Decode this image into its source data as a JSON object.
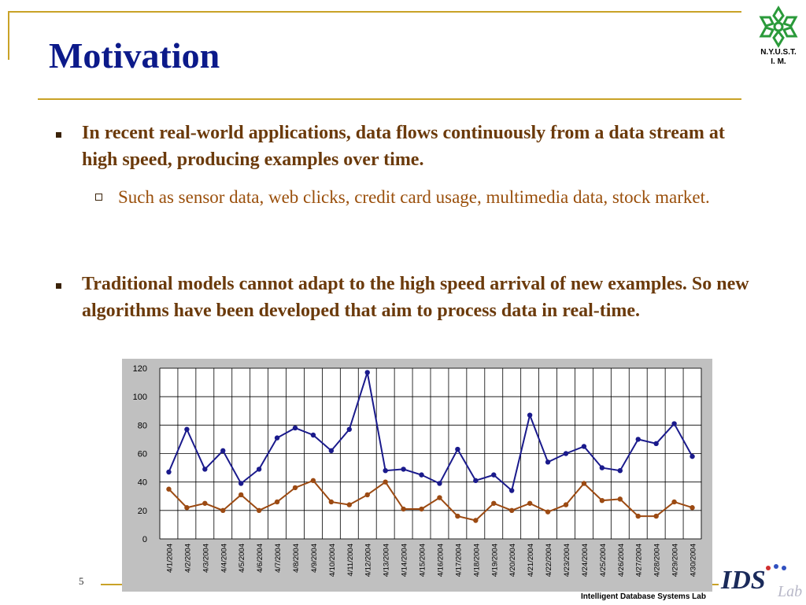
{
  "slide": {
    "title": "Motivation",
    "logo_text_line1": "N.Y.U.S.T.",
    "logo_text_line2": "I. M.",
    "bullet1": "In recent real-world applications, data flows continuously from a data stream at high speed, producing examples over time.",
    "sub_bullet1": "Such as sensor data, web clicks, credit card usage, multimedia data, stock market.",
    "bullet2": "Traditional models cannot adapt to the high speed arrival of new examples. So new algorithms have been developed that aim to process data in real-time.",
    "page_number": "5",
    "footer": "Intelligent Database Systems Lab",
    "ids_logo_text": "IDS",
    "ids_logo_script": "Lab"
  },
  "colors": {
    "title": "#0c1a8a",
    "bullet": "#6b3a0b",
    "sub_bullet": "#9a4f0b",
    "accent_rule": "#c9a227",
    "series_1": "#1a1a8c",
    "series_2": "#9c4a12",
    "logo_green": "#2a9a3a"
  },
  "chart_data": {
    "type": "line",
    "categories": [
      "4/1/2004",
      "4/2/2004",
      "4/3/2004",
      "4/4/2004",
      "4/5/2004",
      "4/6/2004",
      "4/7/2004",
      "4/8/2004",
      "4/9/2004",
      "4/10/2004",
      "4/11/2004",
      "4/12/2004",
      "4/13/2004",
      "4/14/2004",
      "4/15/2004",
      "4/16/2004",
      "4/17/2004",
      "4/18/2004",
      "4/19/2004",
      "4/20/2004",
      "4/21/2004",
      "4/22/2004",
      "4/23/2004",
      "4/24/2004",
      "4/25/2004",
      "4/26/2004",
      "4/27/2004",
      "4/28/2004",
      "4/29/2004",
      "4/30/2004"
    ],
    "series": [
      {
        "values": [
          47,
          77,
          49,
          62,
          39,
          49,
          71,
          78,
          73,
          62,
          77,
          117,
          48,
          49,
          45,
          39,
          63,
          41,
          45,
          34,
          87,
          54,
          60,
          65,
          50,
          48,
          70,
          67,
          81,
          58
        ]
      },
      {
        "values": [
          35,
          22,
          25,
          20,
          31,
          20,
          26,
          36,
          41,
          26,
          24,
          31,
          40,
          21,
          21,
          29,
          16,
          13,
          25,
          20,
          25,
          19,
          24,
          39,
          27,
          28,
          16,
          16,
          26,
          22
        ]
      }
    ],
    "ylim": [
      0,
      120
    ],
    "yticks": [
      "0",
      "20",
      "40",
      "60",
      "80",
      "100",
      "120"
    ],
    "grid": true,
    "legend": "none"
  }
}
